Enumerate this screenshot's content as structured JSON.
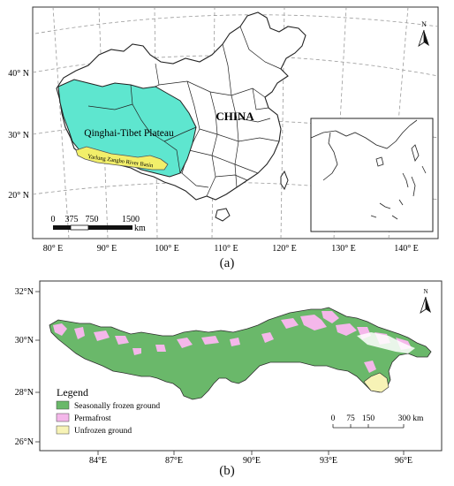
{
  "panel_a": {
    "caption": "(a)",
    "lat_labels": [
      "40° N",
      "30° N",
      "20° N"
    ],
    "lon_labels": [
      "80° E",
      "90° E",
      "100° E",
      "110° E",
      "120° E",
      "130° E",
      "140° E"
    ],
    "country_label": "CHINA",
    "plateau_label": "Qinghai-Tibet Plateau",
    "basin_label": "Yarlung Zangbo River Basin",
    "north_letter": "N",
    "scale_ticks": [
      "0",
      "375",
      "750",
      "1500"
    ],
    "scale_unit": "km",
    "colors": {
      "plateau": "#5ee6cf",
      "basin": "#f2ef6a",
      "boundary": "#222222",
      "graticule": "#9a9a9a"
    }
  },
  "panel_b": {
    "caption": "(b)",
    "lat_labels": [
      "32°N",
      "30°N",
      "28°N",
      "26°N"
    ],
    "lon_labels": [
      "84°E",
      "87°E",
      "90°E",
      "93°E",
      "96°E"
    ],
    "north_letter": "N",
    "legend": {
      "title": "Legend",
      "items": [
        {
          "label": "Seasonally frozen ground",
          "color": "#6ab86a"
        },
        {
          "label": "Permafrost",
          "color": "#f4b7ea"
        },
        {
          "label": "Unfrozen ground",
          "color": "#f7f3b6"
        }
      ]
    },
    "scale_ticks": [
      "0",
      "75",
      "150",
      "300 km"
    ]
  }
}
